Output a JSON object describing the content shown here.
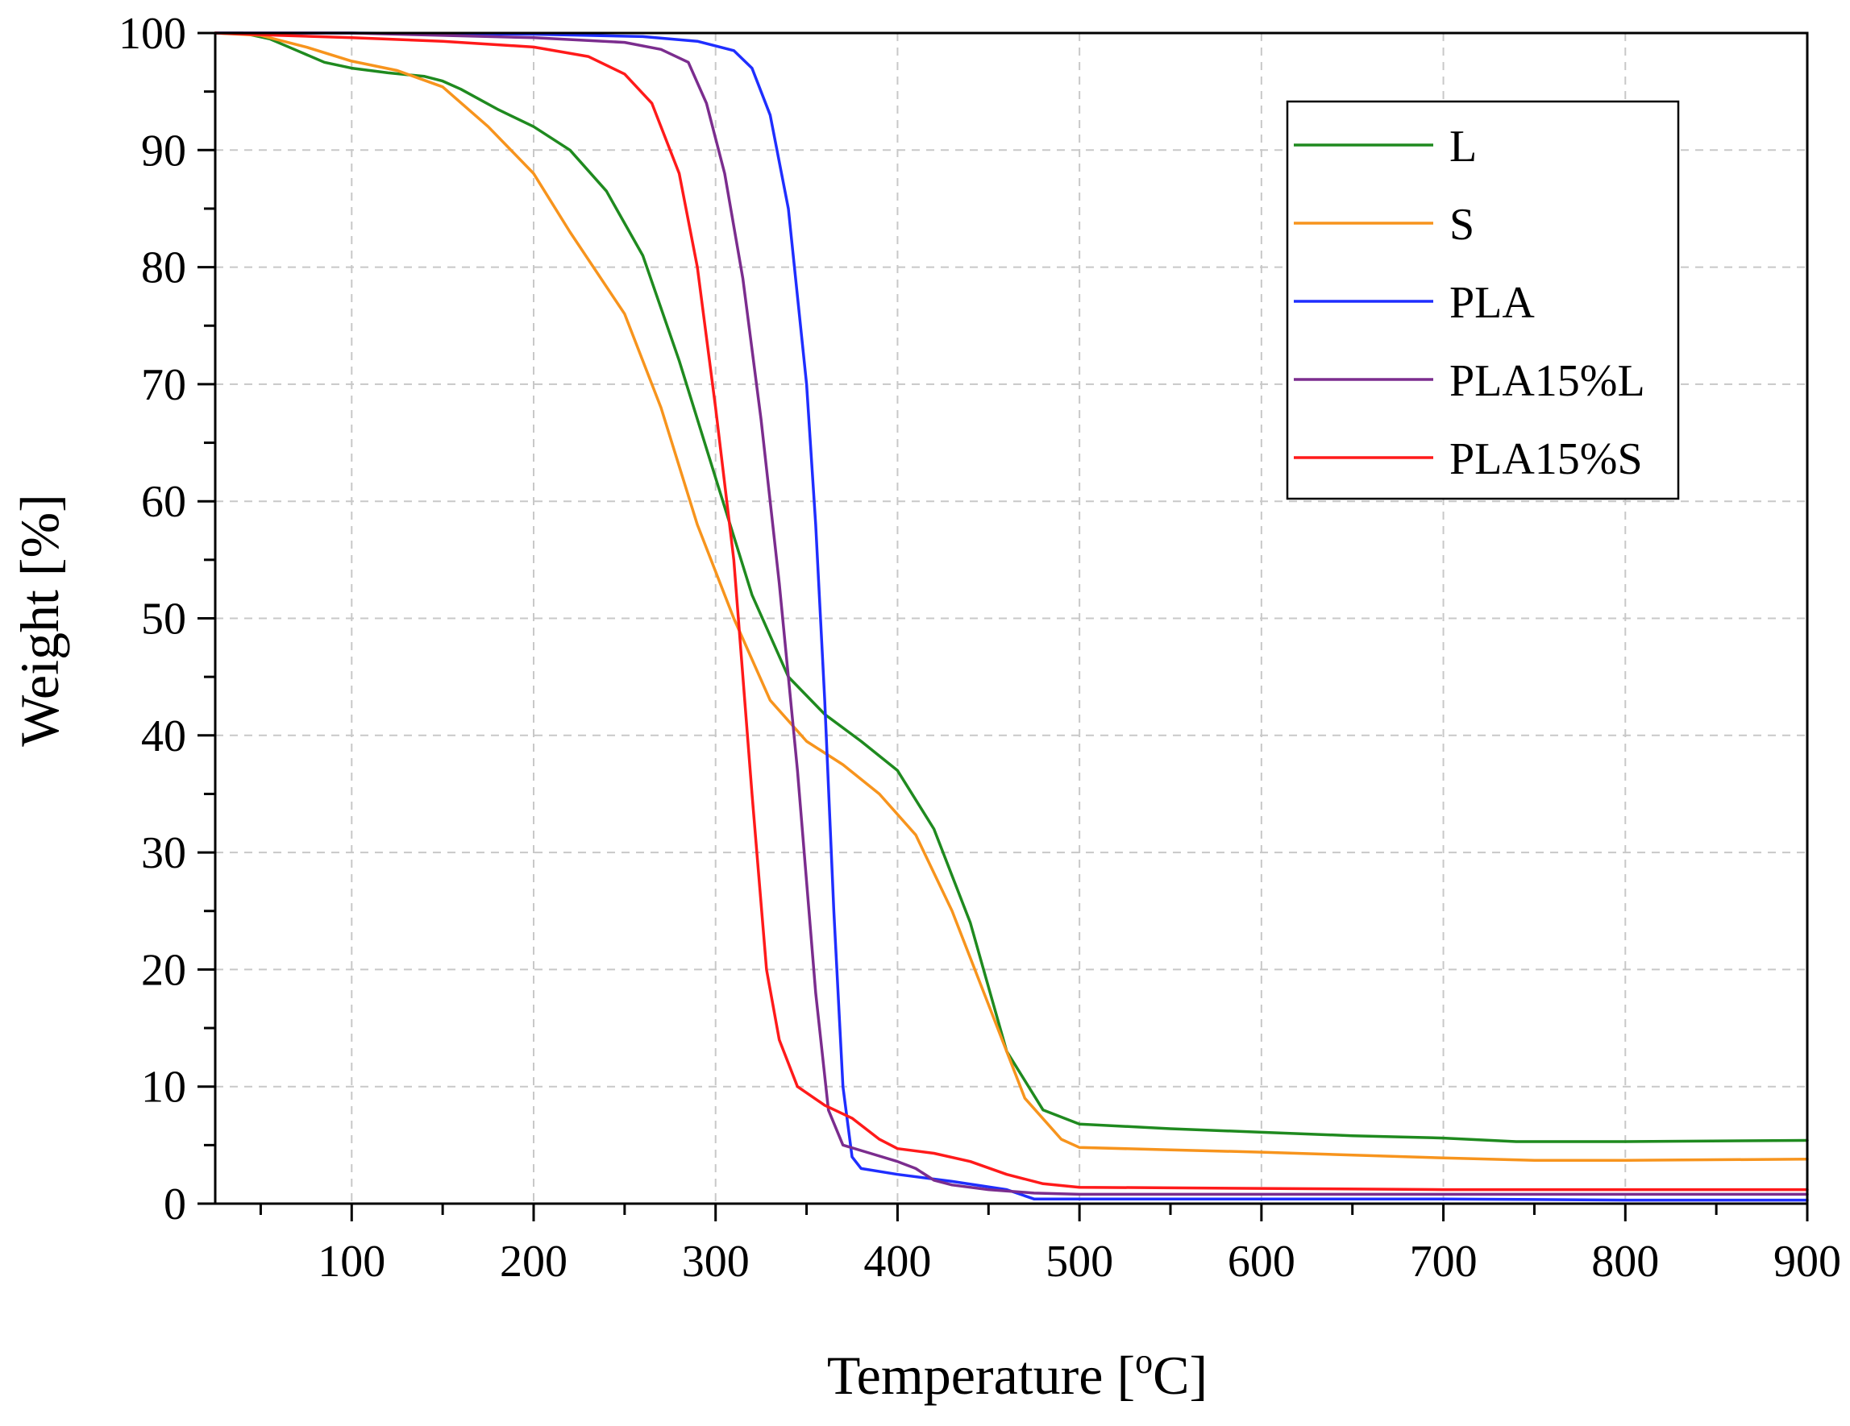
{
  "chart_data": {
    "type": "line",
    "title": "",
    "xlabel": "Temperature [",
    "xlabel_sup": "o",
    "xlabel_suffix": "C]",
    "ylabel": "Weight [%]",
    "xlim": [
      25,
      900
    ],
    "ylim": [
      0,
      100
    ],
    "x_ticks": [
      100,
      200,
      300,
      400,
      500,
      600,
      700,
      800,
      900
    ],
    "y_ticks": [
      0,
      10,
      20,
      30,
      40,
      50,
      60,
      70,
      80,
      90,
      100
    ],
    "x_tick_labels": [
      "100",
      "200",
      "300",
      "400",
      "500",
      "600",
      "700",
      "800",
      "900"
    ],
    "y_tick_labels": [
      "0",
      "10",
      "20",
      "30",
      "40",
      "50",
      "60",
      "70",
      "80",
      "90",
      "100"
    ],
    "grid": true,
    "legend_position": "top-right",
    "series": [
      {
        "name": "L",
        "color": "#1f8a1f",
        "points": [
          [
            25,
            100
          ],
          [
            40,
            100
          ],
          [
            55,
            99.5
          ],
          [
            70,
            98.5
          ],
          [
            85,
            97.5
          ],
          [
            100,
            97
          ],
          [
            120,
            96.6
          ],
          [
            140,
            96.3
          ],
          [
            150,
            95.9
          ],
          [
            160,
            95.2
          ],
          [
            180,
            93.5
          ],
          [
            200,
            92
          ],
          [
            220,
            90
          ],
          [
            240,
            86.5
          ],
          [
            260,
            81
          ],
          [
            280,
            72
          ],
          [
            300,
            62
          ],
          [
            320,
            52
          ],
          [
            340,
            45
          ],
          [
            360,
            41.8
          ],
          [
            380,
            39.5
          ],
          [
            400,
            37
          ],
          [
            420,
            32
          ],
          [
            440,
            24
          ],
          [
            460,
            13
          ],
          [
            480,
            8
          ],
          [
            500,
            6.8
          ],
          [
            550,
            6.4
          ],
          [
            600,
            6.1
          ],
          [
            650,
            5.8
          ],
          [
            700,
            5.6
          ],
          [
            740,
            5.3
          ],
          [
            800,
            5.3
          ],
          [
            900,
            5.4
          ]
        ]
      },
      {
        "name": "S",
        "color": "#f7941d",
        "points": [
          [
            25,
            100
          ],
          [
            50,
            99.8
          ],
          [
            75,
            98.8
          ],
          [
            100,
            97.6
          ],
          [
            125,
            96.8
          ],
          [
            150,
            95.4
          ],
          [
            175,
            92
          ],
          [
            200,
            88
          ],
          [
            220,
            83
          ],
          [
            250,
            76
          ],
          [
            270,
            68
          ],
          [
            290,
            58
          ],
          [
            310,
            50
          ],
          [
            330,
            43
          ],
          [
            350,
            39.5
          ],
          [
            370,
            37.5
          ],
          [
            390,
            35
          ],
          [
            410,
            31.5
          ],
          [
            430,
            25
          ],
          [
            450,
            17
          ],
          [
            470,
            9
          ],
          [
            490,
            5.5
          ],
          [
            500,
            4.8
          ],
          [
            550,
            4.6
          ],
          [
            600,
            4.4
          ],
          [
            700,
            3.9
          ],
          [
            750,
            3.7
          ],
          [
            800,
            3.7
          ],
          [
            900,
            3.8
          ]
        ]
      },
      {
        "name": "PLA",
        "color": "#1f2eff",
        "points": [
          [
            25,
            100
          ],
          [
            100,
            100
          ],
          [
            200,
            99.9
          ],
          [
            260,
            99.7
          ],
          [
            290,
            99.3
          ],
          [
            310,
            98.5
          ],
          [
            320,
            97
          ],
          [
            330,
            93
          ],
          [
            340,
            85
          ],
          [
            350,
            70
          ],
          [
            355,
            58
          ],
          [
            360,
            43
          ],
          [
            365,
            25
          ],
          [
            370,
            10
          ],
          [
            375,
            4
          ],
          [
            380,
            3
          ],
          [
            400,
            2.5
          ],
          [
            430,
            1.9
          ],
          [
            460,
            1.2
          ],
          [
            475,
            0.4
          ],
          [
            500,
            0.4
          ],
          [
            600,
            0.4
          ],
          [
            700,
            0.4
          ],
          [
            800,
            0.3
          ],
          [
            900,
            0.3
          ]
        ]
      },
      {
        "name": "PLA15%L",
        "color": "#7b2d8e",
        "points": [
          [
            25,
            100
          ],
          [
            100,
            100
          ],
          [
            200,
            99.6
          ],
          [
            250,
            99.2
          ],
          [
            270,
            98.6
          ],
          [
            285,
            97.5
          ],
          [
            295,
            94
          ],
          [
            305,
            88
          ],
          [
            315,
            79
          ],
          [
            325,
            67
          ],
          [
            335,
            53
          ],
          [
            345,
            37
          ],
          [
            355,
            18
          ],
          [
            362,
            8
          ],
          [
            370,
            5
          ],
          [
            385,
            4.3
          ],
          [
            400,
            3.6
          ],
          [
            410,
            3
          ],
          [
            420,
            2
          ],
          [
            430,
            1.6
          ],
          [
            450,
            1.2
          ],
          [
            475,
            0.9
          ],
          [
            500,
            0.8
          ],
          [
            600,
            0.8
          ],
          [
            700,
            0.8
          ],
          [
            800,
            0.8
          ],
          [
            900,
            0.8
          ]
        ]
      },
      {
        "name": "PLA15%S",
        "color": "#ff1a1a",
        "points": [
          [
            25,
            100
          ],
          [
            60,
            99.8
          ],
          [
            100,
            99.6
          ],
          [
            150,
            99.3
          ],
          [
            200,
            98.8
          ],
          [
            230,
            98
          ],
          [
            250,
            96.5
          ],
          [
            265,
            94
          ],
          [
            280,
            88
          ],
          [
            290,
            80
          ],
          [
            300,
            68
          ],
          [
            310,
            55
          ],
          [
            320,
            35
          ],
          [
            328,
            20
          ],
          [
            335,
            14
          ],
          [
            345,
            10
          ],
          [
            360,
            8.4
          ],
          [
            375,
            7.3
          ],
          [
            390,
            5.5
          ],
          [
            400,
            4.7
          ],
          [
            420,
            4.3
          ],
          [
            440,
            3.6
          ],
          [
            460,
            2.5
          ],
          [
            480,
            1.7
          ],
          [
            500,
            1.4
          ],
          [
            600,
            1.3
          ],
          [
            700,
            1.2
          ],
          [
            800,
            1.2
          ],
          [
            900,
            1.2
          ]
        ]
      }
    ]
  }
}
